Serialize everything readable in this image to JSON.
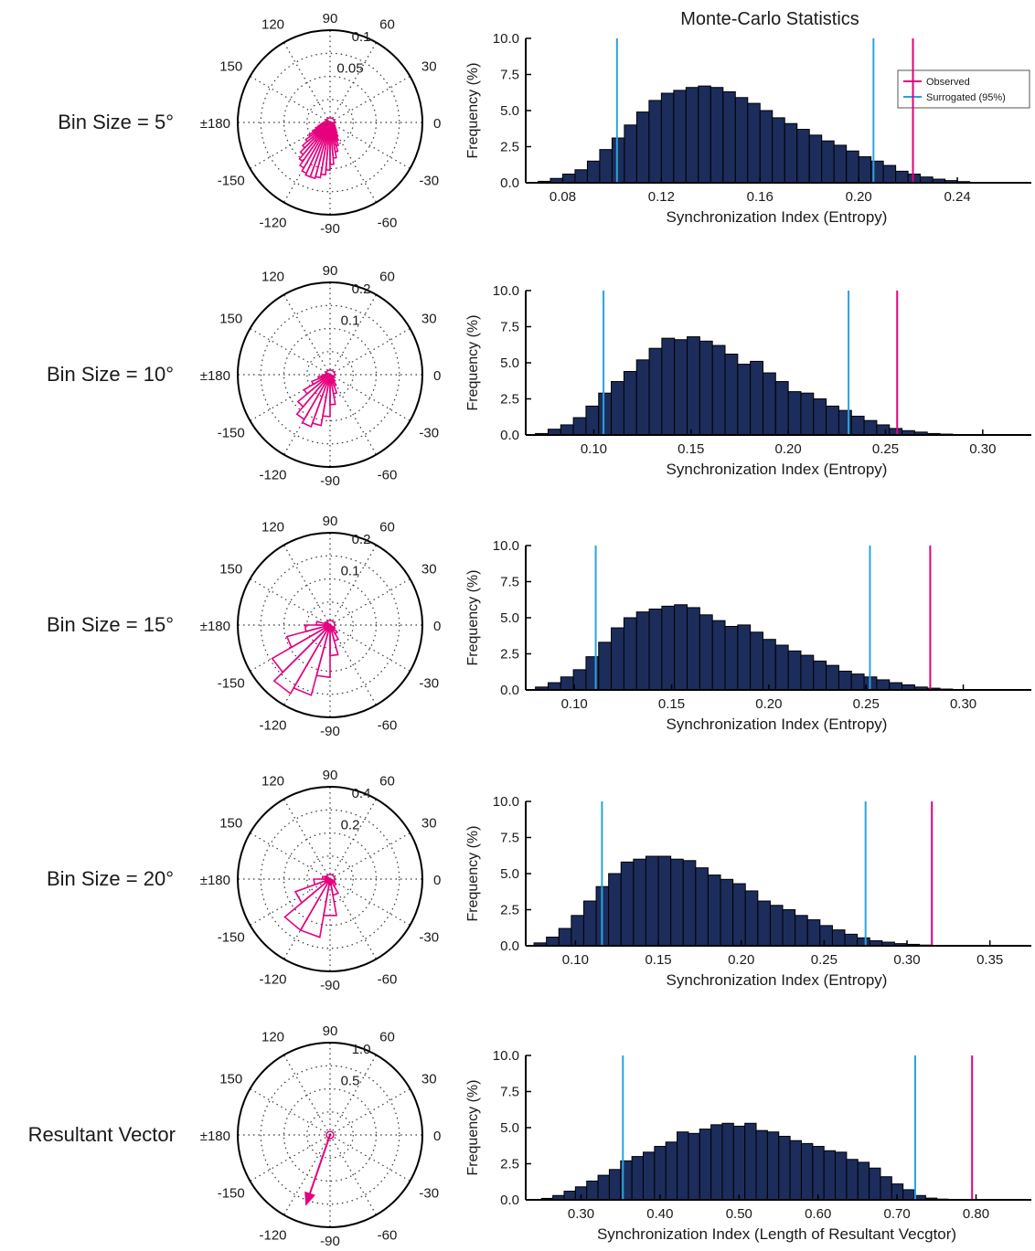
{
  "figure_title": "Monte-Carlo Statistics",
  "legend": {
    "placement": "top-right",
    "entries": [
      "Observed",
      "Surrogated (95%)"
    ]
  },
  "colors": {
    "bar_fill": "#1c2d5c",
    "bar_stroke": "#000000",
    "observed": "#e6007e",
    "surrogate": "#29a3dd",
    "rose": "#e6007e"
  },
  "chart_data": [
    {
      "type": "bar",
      "row_label": "Bin Size = 5°",
      "polar": {
        "ticks": [
          "0.05",
          "0.1"
        ],
        "rmax": 0.1,
        "arrow": null
      },
      "xlabel": "Synchronization Index (Entropy)",
      "ylabel": "Frequency (%)",
      "xlim": [
        0.065,
        0.27
      ],
      "ylim": [
        0,
        10
      ],
      "xticks": [
        "0.08",
        "0.12",
        "0.16",
        "0.20",
        "0.24"
      ],
      "yticks": [
        "0.0",
        "2.5",
        "5.0",
        "7.5",
        "10.0"
      ],
      "bin_start": 0.07,
      "bin_width": 0.005,
      "values": [
        0.1,
        0.3,
        0.6,
        0.9,
        1.5,
        2.3,
        3.1,
        4.0,
        4.9,
        5.7,
        6.2,
        6.4,
        6.6,
        6.7,
        6.6,
        6.3,
        5.9,
        5.5,
        5.0,
        4.5,
        4.1,
        3.7,
        3.3,
        2.9,
        2.6,
        2.2,
        1.8,
        1.5,
        1.2,
        0.8,
        0.6,
        0.4,
        0.25,
        0.15,
        0.08,
        0.03
      ],
      "observed": 0.222,
      "surrogate": [
        0.102,
        0.206
      ]
    },
    {
      "type": "bar",
      "row_label": "Bin Size = 10°",
      "polar": {
        "ticks": [
          "0.1",
          "0.2"
        ],
        "rmax": 0.2,
        "arrow": null
      },
      "xlabel": "Synchronization Index (Entropy)",
      "ylabel": "Frequency (%)",
      "xlim": [
        0.065,
        0.325
      ],
      "ylim": [
        0,
        10
      ],
      "xticks": [
        "0.10",
        "0.15",
        "0.20",
        "0.25",
        "0.30"
      ],
      "yticks": [
        "0.0",
        "2.5",
        "5.0",
        "7.5",
        "10.0"
      ],
      "bin_start": 0.07,
      "bin_width": 0.0065,
      "values": [
        0.1,
        0.4,
        0.7,
        1.2,
        2.0,
        2.9,
        3.7,
        4.4,
        5.2,
        6.0,
        6.7,
        6.6,
        6.8,
        6.5,
        6.2,
        5.6,
        4.9,
        5.1,
        4.3,
        3.7,
        3.0,
        2.9,
        2.5,
        2.0,
        1.7,
        1.3,
        1.0,
        0.7,
        0.45,
        0.3,
        0.2,
        0.1,
        0.06,
        0.03,
        0.02,
        0.01,
        0.0,
        0.0,
        0.0
      ],
      "observed": 0.256,
      "surrogate": [
        0.105,
        0.231
      ]
    },
    {
      "type": "bar",
      "row_label": "Bin Size = 15°",
      "polar": {
        "ticks": [
          "0.1",
          "0.2"
        ],
        "rmax": 0.2,
        "arrow": null
      },
      "xlabel": "Synchronization Index (Entropy)",
      "ylabel": "Frequency (%)",
      "xlim": [
        0.075,
        0.335
      ],
      "ylim": [
        0,
        10
      ],
      "xticks": [
        "0.10",
        "0.15",
        "0.20",
        "0.25",
        "0.30"
      ],
      "yticks": [
        "0.0",
        "2.5",
        "5.0",
        "7.5",
        "10.0"
      ],
      "bin_start": 0.08,
      "bin_width": 0.0065,
      "values": [
        0.2,
        0.5,
        0.9,
        1.4,
        2.3,
        3.3,
        4.3,
        5.0,
        5.4,
        5.6,
        5.8,
        5.9,
        5.7,
        5.2,
        4.8,
        4.4,
        4.5,
        4.0,
        3.5,
        3.1,
        2.7,
        2.4,
        2.0,
        1.7,
        1.3,
        1.1,
        0.9,
        0.7,
        0.5,
        0.35,
        0.2,
        0.12,
        0.06,
        0.03,
        0.01,
        0.0,
        0.0,
        0.0,
        0.0
      ],
      "observed": 0.283,
      "surrogate": [
        0.111,
        0.252
      ]
    },
    {
      "type": "bar",
      "row_label": "Bin Size = 20°",
      "polar": {
        "ticks": [
          "0.2",
          "0.4"
        ],
        "rmax": 0.4,
        "arrow": null
      },
      "xlabel": "Synchronization Index (Entropy)",
      "ylabel": "Frequency (%)",
      "xlim": [
        0.07,
        0.375
      ],
      "ylim": [
        0,
        10
      ],
      "xticks": [
        "0.10",
        "0.15",
        "0.20",
        "0.25",
        "0.30",
        "0.35"
      ],
      "yticks": [
        "0.0",
        "2.5",
        "5.0",
        "7.5",
        "10.0"
      ],
      "bin_start": 0.075,
      "bin_width": 0.0075,
      "values": [
        0.2,
        0.6,
        1.2,
        2.1,
        3.1,
        4.1,
        5.0,
        5.8,
        6.0,
        6.2,
        6.2,
        6.0,
        5.9,
        5.4,
        4.9,
        4.6,
        4.3,
        3.8,
        3.1,
        2.8,
        2.5,
        2.1,
        1.8,
        1.4,
        1.1,
        0.8,
        0.55,
        0.35,
        0.25,
        0.15,
        0.1,
        0.05,
        0.02,
        0.01,
        0.0,
        0.0,
        0.0,
        0.0,
        0.0,
        0.0
      ],
      "observed": 0.315,
      "surrogate": [
        0.116,
        0.275
      ]
    },
    {
      "type": "bar",
      "row_label": "Resultant Vector",
      "polar": {
        "ticks": [
          "0.5",
          "1.0"
        ],
        "rmax": 1.0,
        "arrow": {
          "angle_deg": -109,
          "length": 0.8
        }
      },
      "xlabel": "Synchronization Index (Length of Resultant Vecgtor)",
      "ylabel": "Frequency (%)",
      "xlim": [
        0.23,
        0.87
      ],
      "ylim": [
        0,
        10
      ],
      "xticks": [
        "0.30",
        "0.40",
        "0.50",
        "0.60",
        "0.70",
        "0.80"
      ],
      "yticks": [
        "0.0",
        "2.5",
        "5.0",
        "7.5",
        "10.0"
      ],
      "bin_start": 0.25,
      "bin_width": 0.0143,
      "values": [
        0.1,
        0.3,
        0.6,
        0.9,
        1.3,
        1.7,
        2.1,
        2.7,
        3.0,
        3.3,
        3.7,
        4.0,
        4.7,
        4.6,
        4.9,
        5.2,
        5.3,
        5.1,
        5.3,
        4.8,
        4.7,
        4.4,
        4.1,
        3.9,
        3.7,
        3.4,
        3.3,
        2.8,
        2.6,
        2.2,
        1.6,
        1.1,
        0.7,
        0.3,
        0.12,
        0.05,
        0.02,
        0.0,
        0.0,
        0.0,
        0.0,
        0.0
      ],
      "observed": 0.795,
      "surrogate": [
        0.353,
        0.723
      ]
    }
  ]
}
